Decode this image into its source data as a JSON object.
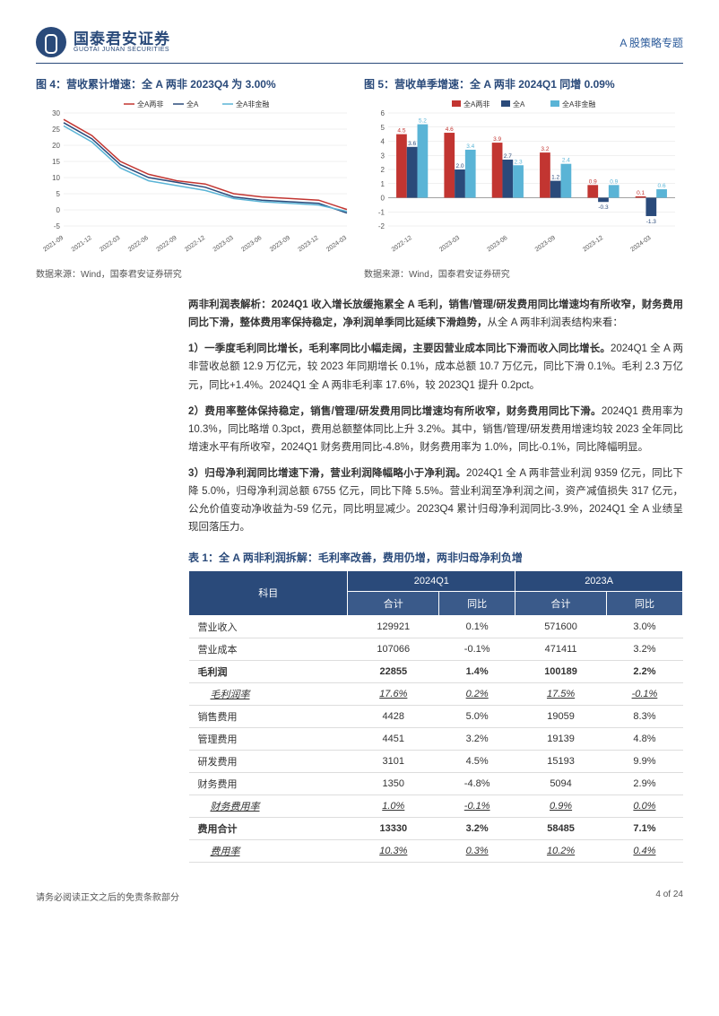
{
  "header": {
    "company_cn": "国泰君安证券",
    "company_en": "GUOTAI JUNAN SECURITIES",
    "doc_type": "A 股策略专题"
  },
  "chart4": {
    "title": "图 4：营收累计增速：全 A 两非 2023Q4 为 3.00%",
    "type": "line",
    "legend": [
      {
        "name": "全A两非",
        "color": "#c23531"
      },
      {
        "name": "全A",
        "color": "#2a4a7a"
      },
      {
        "name": "全A非金融",
        "color": "#5ab4d6"
      }
    ],
    "x_labels": [
      "2021-09",
      "2021-12",
      "2022-03",
      "2022-06",
      "2022-09",
      "2022-12",
      "2023-03",
      "2023-06",
      "2023-09",
      "2023-12",
      "2024-03"
    ],
    "ylim": [
      -5,
      30
    ],
    "ytick_step": 5,
    "series": {
      "all_a_two": [
        28,
        23,
        15,
        11,
        9,
        8,
        5,
        4,
        3.5,
        3.0,
        0.1
      ],
      "all_a": [
        27,
        22,
        14,
        10,
        8.5,
        7,
        4,
        3,
        2.5,
        2,
        -1
      ],
      "all_a_nonfin": [
        26,
        21,
        13,
        9,
        7.5,
        6,
        3.5,
        2.5,
        2,
        1.5,
        -0.5
      ]
    },
    "background": "#ffffff",
    "grid_color": "#e0e0e0",
    "source": "数据来源：Wind，国泰君安证券研究"
  },
  "chart5": {
    "title": "图 5：营收单季增速：全 A 两非 2024Q1 同增 0.09%",
    "type": "bar",
    "legend": [
      {
        "name": "全A两非",
        "color": "#c23531"
      },
      {
        "name": "全A",
        "color": "#2a4a7a"
      },
      {
        "name": "全A非金融",
        "color": "#5ab4d6"
      }
    ],
    "x_labels": [
      "2022-12",
      "2023-03",
      "2023-06",
      "2023-09",
      "2023-12",
      "2024-03"
    ],
    "ylim": [
      -2,
      6
    ],
    "ytick_step": 1,
    "series": {
      "all_a_two": [
        4.5,
        4.6,
        3.9,
        3.2,
        0.9,
        0.1
      ],
      "all_a": [
        3.6,
        2.0,
        2.7,
        1.2,
        -0.3,
        -1.3
      ],
      "all_a_nonfin": [
        5.2,
        3.4,
        2.3,
        2.4,
        0.9,
        0.6
      ]
    },
    "value_labels": {
      "all_a_two": [
        "4.5",
        "4.6",
        "3.9",
        "3.2",
        "0.9",
        "0.1"
      ],
      "all_a": [
        "3.6",
        "2.0",
        "2.7",
        "1.2",
        "-0.3",
        "-1.3"
      ],
      "all_a_nonfin": [
        "5.2",
        "3.4",
        "2.3",
        "2.4",
        "0.9",
        "0.6"
      ]
    },
    "background": "#ffffff",
    "grid_color": "#e0e0e0",
    "source": "数据来源：Wind，国泰君安证券研究"
  },
  "body": {
    "p1_bold": "两非利润表解析：2024Q1 收入增长放缓拖累全 A 毛利，销售/管理/研发费用同比增速均有所收窄，财务费用同比下滑，整体费用率保持稳定，净利润单季同比延续下滑趋势，",
    "p1_rest": "从全 A 两非利润表结构来看：",
    "p2_bold": "1）一季度毛利同比增长，毛利率同比小幅走阔，主要因营业成本同比下滑而收入同比增长。",
    "p2_rest": "2024Q1 全 A 两非营收总额 12.9 万亿元，较 2023 年同期增长 0.1%，成本总额 10.7 万亿元，同比下滑 0.1%。毛利 2.3 万亿元，同比+1.4%。2024Q1 全 A 两非毛利率 17.6%，较 2023Q1 提升 0.2pct。",
    "p3_bold": "2）费用率整体保持稳定，销售/管理/研发费用同比增速均有所收窄，财务费用同比下滑。",
    "p3_rest": "2024Q1 费用率为 10.3%，同比略增 0.3pct，费用总额整体同比上升 3.2%。其中，销售/管理/研发费用增速均较 2023 全年同比增速水平有所收窄，2024Q1 财务费用同比-4.8%，财务费用率为 1.0%，同比-0.1%，同比降幅明显。",
    "p4_bold": "3）归母净利润同比增速下滑，营业利润降幅略小于净利润。",
    "p4_rest": "2024Q1 全 A 两非营业利润 9359 亿元，同比下降 5.0%，归母净利润总额 6755 亿元，同比下降 5.5%。营业利润至净利润之间，资产减值损失 317 亿元，公允价值变动净收益为-59 亿元，同比明显减少。2023Q4 累计归母净利润同比-3.9%，2024Q1 全 A 业绩呈现回落压力。"
  },
  "table": {
    "title": "表 1：全 A 两非利润拆解：毛利率改善，费用仍增，两非归母净利负增",
    "header_item": "科目",
    "header_periods": [
      "2024Q1",
      "2023A"
    ],
    "header_subs": [
      "合计",
      "同比",
      "合计",
      "同比"
    ],
    "rows": [
      {
        "label": "营业收入",
        "vals": [
          "129921",
          "0.1%",
          "571600",
          "3.0%"
        ],
        "style": ""
      },
      {
        "label": "营业成本",
        "vals": [
          "107066",
          "-0.1%",
          "471411",
          "3.2%"
        ],
        "style": ""
      },
      {
        "label": "毛利润",
        "vals": [
          "22855",
          "1.4%",
          "100189",
          "2.2%"
        ],
        "style": "bold"
      },
      {
        "label": "毛利润率",
        "vals": [
          "17.6%",
          "0.2%",
          "17.5%",
          "-0.1%"
        ],
        "style": "italic indent"
      },
      {
        "label": "销售费用",
        "vals": [
          "4428",
          "5.0%",
          "19059",
          "8.3%"
        ],
        "style": ""
      },
      {
        "label": "管理费用",
        "vals": [
          "4451",
          "3.2%",
          "19139",
          "4.8%"
        ],
        "style": ""
      },
      {
        "label": "研发费用",
        "vals": [
          "3101",
          "4.5%",
          "15193",
          "9.9%"
        ],
        "style": ""
      },
      {
        "label": "财务费用",
        "vals": [
          "1350",
          "-4.8%",
          "5094",
          "2.9%"
        ],
        "style": ""
      },
      {
        "label": "财务费用率",
        "vals": [
          "1.0%",
          "-0.1%",
          "0.9%",
          "0.0%"
        ],
        "style": "italic indent"
      },
      {
        "label": "费用合计",
        "vals": [
          "13330",
          "3.2%",
          "58485",
          "7.1%"
        ],
        "style": "bold"
      },
      {
        "label": "费用率",
        "vals": [
          "10.3%",
          "0.3%",
          "10.2%",
          "0.4%"
        ],
        "style": "italic indent"
      }
    ]
  },
  "footer": {
    "disclaimer": "请务必阅读正文之后的免责条款部分",
    "page": "4 of 24"
  }
}
